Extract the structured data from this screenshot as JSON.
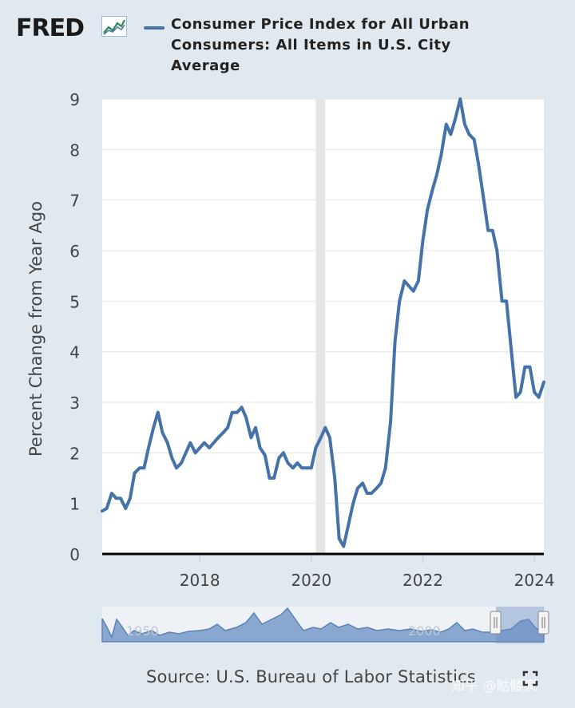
{
  "logo": {
    "text": "FRED",
    "icon": "fred-logo-graph-icon"
  },
  "legend": {
    "label": "Consumer Price Index for All Urban Consumers: All Items in U.S. City Average",
    "color": "#4572a7"
  },
  "source": "Source: U.S. Bureau of Labor Statistics",
  "watermark": "知乎 @骷髅疯",
  "navigator": {
    "labels": [
      "1950",
      "2000"
    ]
  },
  "colors": {
    "line": "#4572a7",
    "recession": "#e4e4e4",
    "page_bg": "#e1e9f0",
    "plot_bg": "#ffffff",
    "navigator_fill": "#89a7cf"
  },
  "chart_data": {
    "type": "line",
    "title": "",
    "xlabel": "",
    "ylabel": "Percent Change from Year Ago",
    "xlim": [
      2016.25,
      2024.17
    ],
    "ylim": [
      0,
      9
    ],
    "yticks": [
      "0",
      "1",
      "2",
      "3",
      "4",
      "5",
      "6",
      "7",
      "8",
      "9"
    ],
    "xticks": [
      {
        "label": "2018",
        "value": 2018
      },
      {
        "label": "2020",
        "value": 2020
      },
      {
        "label": "2022",
        "value": 2022
      },
      {
        "label": "2024",
        "value": 2024
      }
    ],
    "grid": true,
    "recession": [
      2020.08,
      2020.25
    ],
    "series": [
      {
        "name": "Consumer Price Index for All Urban Consumers: All Items in U.S. City Average",
        "x": [
          2016.25,
          2016.33,
          2016.42,
          2016.5,
          2016.58,
          2016.67,
          2016.75,
          2016.83,
          2016.92,
          2017.0,
          2017.08,
          2017.17,
          2017.25,
          2017.33,
          2017.42,
          2017.5,
          2017.58,
          2017.67,
          2017.75,
          2017.83,
          2017.92,
          2018.0,
          2018.08,
          2018.17,
          2018.25,
          2018.33,
          2018.42,
          2018.5,
          2018.58,
          2018.67,
          2018.75,
          2018.83,
          2018.92,
          2019.0,
          2019.08,
          2019.17,
          2019.25,
          2019.33,
          2019.42,
          2019.5,
          2019.58,
          2019.67,
          2019.75,
          2019.83,
          2019.92,
          2020.0,
          2020.08,
          2020.17,
          2020.25,
          2020.33,
          2020.42,
          2020.5,
          2020.58,
          2020.67,
          2020.75,
          2020.83,
          2020.92,
          2021.0,
          2021.08,
          2021.17,
          2021.25,
          2021.33,
          2021.42,
          2021.5,
          2021.58,
          2021.67,
          2021.75,
          2021.83,
          2021.92,
          2022.0,
          2022.08,
          2022.17,
          2022.25,
          2022.33,
          2022.42,
          2022.5,
          2022.58,
          2022.67,
          2022.75,
          2022.83,
          2022.92,
          2023.0,
          2023.08,
          2023.17,
          2023.25,
          2023.33,
          2023.42,
          2023.5,
          2023.58,
          2023.67,
          2023.75,
          2023.83,
          2023.92,
          2024.0,
          2024.08,
          2024.17
        ],
        "y": [
          0.85,
          0.9,
          1.2,
          1.1,
          1.1,
          0.9,
          1.1,
          1.6,
          1.7,
          1.7,
          2.1,
          2.5,
          2.8,
          2.4,
          2.2,
          1.9,
          1.7,
          1.8,
          2.0,
          2.2,
          2.0,
          2.1,
          2.2,
          2.1,
          2.2,
          2.3,
          2.4,
          2.5,
          2.8,
          2.8,
          2.9,
          2.7,
          2.3,
          2.5,
          2.1,
          1.95,
          1.5,
          1.5,
          1.9,
          2.0,
          1.8,
          1.7,
          1.8,
          1.7,
          1.7,
          1.7,
          2.1,
          2.3,
          2.5,
          2.3,
          1.5,
          0.3,
          0.15,
          0.6,
          1.0,
          1.3,
          1.4,
          1.2,
          1.2,
          1.3,
          1.4,
          1.7,
          2.6,
          4.2,
          5.0,
          5.4,
          5.3,
          5.2,
          5.4,
          6.2,
          6.8,
          7.2,
          7.5,
          7.9,
          8.5,
          8.3,
          8.6,
          9.0,
          8.5,
          8.3,
          8.2,
          7.7,
          7.1,
          6.4,
          6.4,
          6.0,
          5.0,
          5.0,
          4.1,
          3.1,
          3.2,
          3.7,
          3.7,
          3.2,
          3.1,
          3.4
        ]
      }
    ]
  }
}
